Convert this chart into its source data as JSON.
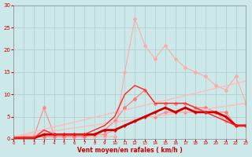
{
  "background_color": "#cce8e8",
  "grid_color": "#aacccc",
  "xlabel": "Vent moyen/en rafales ( km/h )",
  "xlabel_color": "#cc0000",
  "tick_color": "#cc0000",
  "xlim": [
    0,
    23
  ],
  "ylim": [
    0,
    30
  ],
  "yticks": [
    0,
    5,
    10,
    15,
    20,
    25,
    30
  ],
  "xticks": [
    0,
    1,
    2,
    3,
    4,
    5,
    6,
    7,
    8,
    9,
    10,
    11,
    12,
    13,
    14,
    15,
    16,
    17,
    18,
    19,
    20,
    21,
    22,
    23
  ],
  "series": [
    {
      "x": [
        0,
        1,
        2,
        3,
        4,
        5,
        6,
        7,
        8,
        9,
        10,
        11,
        12,
        13,
        14,
        15,
        16,
        17,
        18,
        19,
        20,
        21,
        22,
        23
      ],
      "y": [
        0.5,
        0.5,
        0.5,
        0.5,
        0.5,
        0.5,
        0.5,
        0.5,
        0.5,
        0.5,
        0.5,
        15,
        27,
        21,
        18,
        21,
        18,
        16,
        15,
        14,
        12,
        11,
        14,
        8
      ],
      "color": "#ffaaaa",
      "linewidth": 0.8,
      "marker": "D",
      "markersize": 2.0,
      "alpha": 1.0
    },
    {
      "x": [
        0,
        1,
        2,
        3,
        4,
        5,
        6,
        7,
        8,
        9,
        10,
        11,
        12,
        13,
        14,
        15,
        16,
        17,
        18,
        19,
        20,
        21,
        22,
        23
      ],
      "y": [
        0.5,
        0.5,
        0.5,
        0.5,
        0.5,
        0.5,
        0.5,
        0.5,
        1,
        2,
        4,
        7,
        9,
        11,
        8,
        8,
        8,
        8,
        7,
        7,
        6,
        6,
        3,
        3
      ],
      "color": "#ff7777",
      "linewidth": 0.8,
      "marker": "D",
      "markersize": 2.0,
      "alpha": 1.0
    },
    {
      "x": [
        0,
        1,
        2,
        3,
        4,
        5,
        6,
        7,
        8,
        9,
        10,
        11,
        12,
        13,
        14,
        15,
        16,
        17,
        18,
        19,
        20,
        21,
        22,
        23
      ],
      "y": [
        0.5,
        0.5,
        0.5,
        7,
        1,
        1,
        1,
        1,
        1,
        1,
        2,
        3,
        4,
        5,
        5,
        6,
        6,
        6,
        6,
        6,
        6,
        4,
        3,
        3
      ],
      "color": "#ff8888",
      "linewidth": 0.8,
      "marker": "D",
      "markersize": 2.0,
      "alpha": 1.0
    },
    {
      "x": [
        0,
        23
      ],
      "y": [
        0.5,
        13
      ],
      "color": "#ffbbbb",
      "linewidth": 1.0,
      "marker": null,
      "markersize": 0,
      "alpha": 1.0
    },
    {
      "x": [
        0,
        23
      ],
      "y": [
        0.5,
        8
      ],
      "color": "#ffbbbb",
      "linewidth": 1.0,
      "marker": null,
      "markersize": 0,
      "alpha": 1.0
    },
    {
      "x": [
        0,
        1,
        2,
        3,
        4,
        5,
        6,
        7,
        8,
        9,
        10,
        11,
        12,
        13,
        14,
        15,
        16,
        17,
        18,
        19,
        20,
        21,
        22,
        23
      ],
      "y": [
        0.2,
        0.2,
        0.2,
        1,
        1,
        1,
        1,
        1,
        1,
        2,
        2,
        3,
        4,
        5,
        6,
        7,
        6,
        7,
        6,
        6,
        6,
        5,
        3,
        3
      ],
      "color": "#cc0000",
      "linewidth": 2.0,
      "marker": "+",
      "markersize": 3,
      "alpha": 1.0
    },
    {
      "x": [
        0,
        1,
        2,
        3,
        4,
        5,
        6,
        7,
        8,
        9,
        10,
        11,
        12,
        13,
        14,
        15,
        16,
        17,
        18,
        19,
        20,
        21,
        22,
        23
      ],
      "y": [
        0.2,
        0.2,
        0.2,
        2,
        1,
        1,
        1,
        1,
        2,
        3,
        5,
        10,
        12,
        11,
        8,
        8,
        8,
        8,
        7,
        6,
        5,
        4,
        3,
        3
      ],
      "color": "#ff2222",
      "linewidth": 1.0,
      "marker": null,
      "markersize": 0,
      "alpha": 1.0
    }
  ]
}
